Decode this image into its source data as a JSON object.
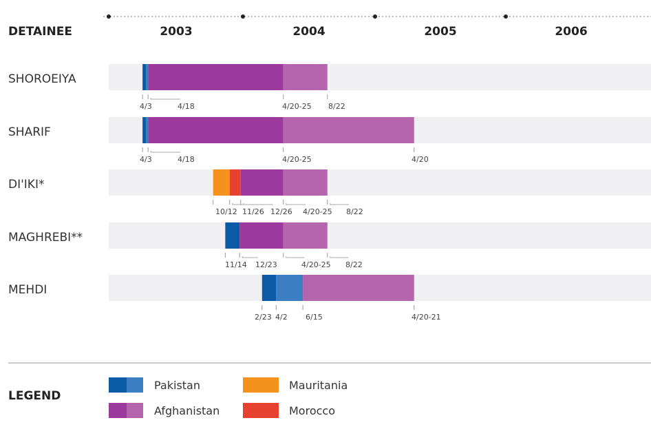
{
  "chart_data": {
    "type": "timeline",
    "header_label": "DETAINEE",
    "years": [
      "2003",
      "2004",
      "2005",
      "2006"
    ],
    "countries": {
      "Pakistan": {
        "dark": "#0b5aa6",
        "light": "#3b7fc2"
      },
      "Afghanistan": {
        "dark": "#9b3a9c",
        "light": "#b564ae"
      },
      "Mauritania": {
        "dark": "#f5921e"
      },
      "Morocco": {
        "dark": "#e8412f"
      }
    },
    "rows": [
      {
        "name": "SHOROEIYA",
        "segments": [
          {
            "country": "Pakistan",
            "shade": "dark",
            "start": "2003-04-03",
            "end": "2003-04-12"
          },
          {
            "country": "Pakistan",
            "shade": "light",
            "start": "2003-04-12",
            "end": "2003-04-18"
          },
          {
            "country": "Afghanistan",
            "shade": "dark",
            "start": "2003-04-18",
            "end": "2004-04-22"
          },
          {
            "country": "Afghanistan",
            "shade": "light",
            "start": "2004-04-22",
            "end": "2004-08-22"
          }
        ],
        "marks": [
          {
            "date": "2003-04-03",
            "label": "4/3"
          },
          {
            "date": "2003-04-18",
            "label": "4/18"
          },
          {
            "date": "2004-04-22",
            "label": "4/20-25"
          },
          {
            "date": "2004-08-22",
            "label": "8/22"
          }
        ]
      },
      {
        "name": "SHARIF",
        "segments": [
          {
            "country": "Pakistan",
            "shade": "dark",
            "start": "2003-04-03",
            "end": "2003-04-12"
          },
          {
            "country": "Pakistan",
            "shade": "light",
            "start": "2003-04-12",
            "end": "2003-04-18"
          },
          {
            "country": "Afghanistan",
            "shade": "dark",
            "start": "2003-04-18",
            "end": "2004-04-22"
          },
          {
            "country": "Afghanistan",
            "shade": "light",
            "start": "2004-04-22",
            "end": "2005-04-20"
          }
        ],
        "marks": [
          {
            "date": "2003-04-03",
            "label": "4/3"
          },
          {
            "date": "2003-04-18",
            "label": "4/18"
          },
          {
            "date": "2004-04-22",
            "label": "4/20-25"
          },
          {
            "date": "2005-04-20",
            "label": "4/20"
          }
        ]
      },
      {
        "name": "DI'IKI*",
        "segments": [
          {
            "country": "Mauritania",
            "shade": "dark",
            "start": "2003-10-12",
            "end": "2003-11-26"
          },
          {
            "country": "Morocco",
            "shade": "dark",
            "start": "2003-11-26",
            "end": "2003-12-26"
          },
          {
            "country": "Afghanistan",
            "shade": "dark",
            "start": "2003-12-26",
            "end": "2004-04-22"
          },
          {
            "country": "Afghanistan",
            "shade": "light",
            "start": "2004-04-22",
            "end": "2004-08-22"
          }
        ],
        "marks": [
          {
            "date": "2003-10-12",
            "label": "10/12"
          },
          {
            "date": "2003-11-26",
            "label": "11/26"
          },
          {
            "date": "2003-12-26",
            "label": "12/26"
          },
          {
            "date": "2004-04-22",
            "label": "4/20-25"
          },
          {
            "date": "2004-08-22",
            "label": "8/22"
          }
        ]
      },
      {
        "name": "MAGHREBI**",
        "segments": [
          {
            "country": "Pakistan",
            "shade": "dark",
            "start": "2003-11-14",
            "end": "2003-12-23"
          },
          {
            "country": "Afghanistan",
            "shade": "dark",
            "start": "2003-12-23",
            "end": "2004-04-22"
          },
          {
            "country": "Afghanistan",
            "shade": "light",
            "start": "2004-04-22",
            "end": "2004-08-22"
          }
        ],
        "marks": [
          {
            "date": "2003-11-14",
            "label": "11/14"
          },
          {
            "date": "2003-12-23",
            "label": "12/23"
          },
          {
            "date": "2004-04-22",
            "label": "4/20-25"
          },
          {
            "date": "2004-08-22",
            "label": "8/22"
          }
        ]
      },
      {
        "name": "MEHDI",
        "segments": [
          {
            "country": "Pakistan",
            "shade": "dark",
            "start": "2004-02-23",
            "end": "2004-04-02"
          },
          {
            "country": "Pakistan",
            "shade": "light",
            "start": "2004-04-02",
            "end": "2004-06-15"
          },
          {
            "country": "Afghanistan",
            "shade": "light",
            "start": "2004-06-15",
            "end": "2005-04-20"
          }
        ],
        "marks": [
          {
            "date": "2004-02-23",
            "label": "2/23"
          },
          {
            "date": "2004-04-02",
            "label": "4/2"
          },
          {
            "date": "2004-06-15",
            "label": "6/15"
          },
          {
            "date": "2005-04-20",
            "label": "4/20-21"
          }
        ]
      }
    ],
    "legend": {
      "title": "LEGEND",
      "items": [
        {
          "label": "Pakistan",
          "country": "Pakistan"
        },
        {
          "label": "Afghanistan",
          "country": "Afghanistan"
        },
        {
          "label": "Mauritania",
          "country": "Mauritania"
        },
        {
          "label": "Morocco",
          "country": "Morocco"
        }
      ]
    }
  }
}
